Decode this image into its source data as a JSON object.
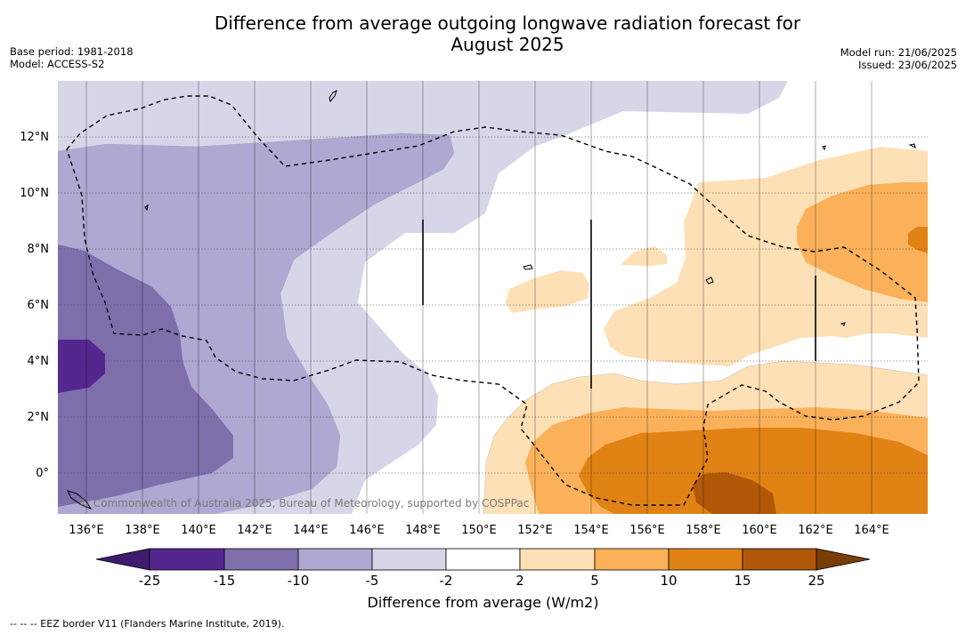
{
  "title_line1": "Difference from average outgoing longwave radiation forecast for",
  "title_line2": "August 2025",
  "base_period": "Base period: 1981-2018",
  "model": "Model: ACCESS-S2",
  "model_run": "Model run: 21/06/2025",
  "issued": "Issued: 23/06/2025",
  "copyright": "© Commonwealth of Australia 2025, Bureau of Meteorology, supported by COSPPac",
  "colorbar": {
    "label": "Difference from average (W/m2)",
    "ticks": [
      "-25",
      "-15",
      "-10",
      "-5",
      "-2",
      "2",
      "5",
      "10",
      "15",
      "25"
    ],
    "colors": [
      "#3f1a6e",
      "#54278f",
      "#7e6fab",
      "#aea8d2",
      "#d6d6e9",
      "#ffffff",
      "#fde0b5",
      "#fbb15a",
      "#e08214",
      "#b05808",
      "#7a3d06"
    ]
  },
  "footnote": "-- -- -- EEZ border V11 (Flanders Marine Institute, 2019).",
  "map": {
    "lon_labels": [
      "136°E",
      "138°E",
      "140°E",
      "142°E",
      "144°E",
      "146°E",
      "148°E",
      "150°E",
      "152°E",
      "154°E",
      "156°E",
      "158°E",
      "160°E",
      "162°E",
      "164°E"
    ],
    "lat_labels": [
      "12°N",
      "10°N",
      "8°N",
      "6°N",
      "4°N",
      "2°N",
      "0°"
    ]
  }
}
